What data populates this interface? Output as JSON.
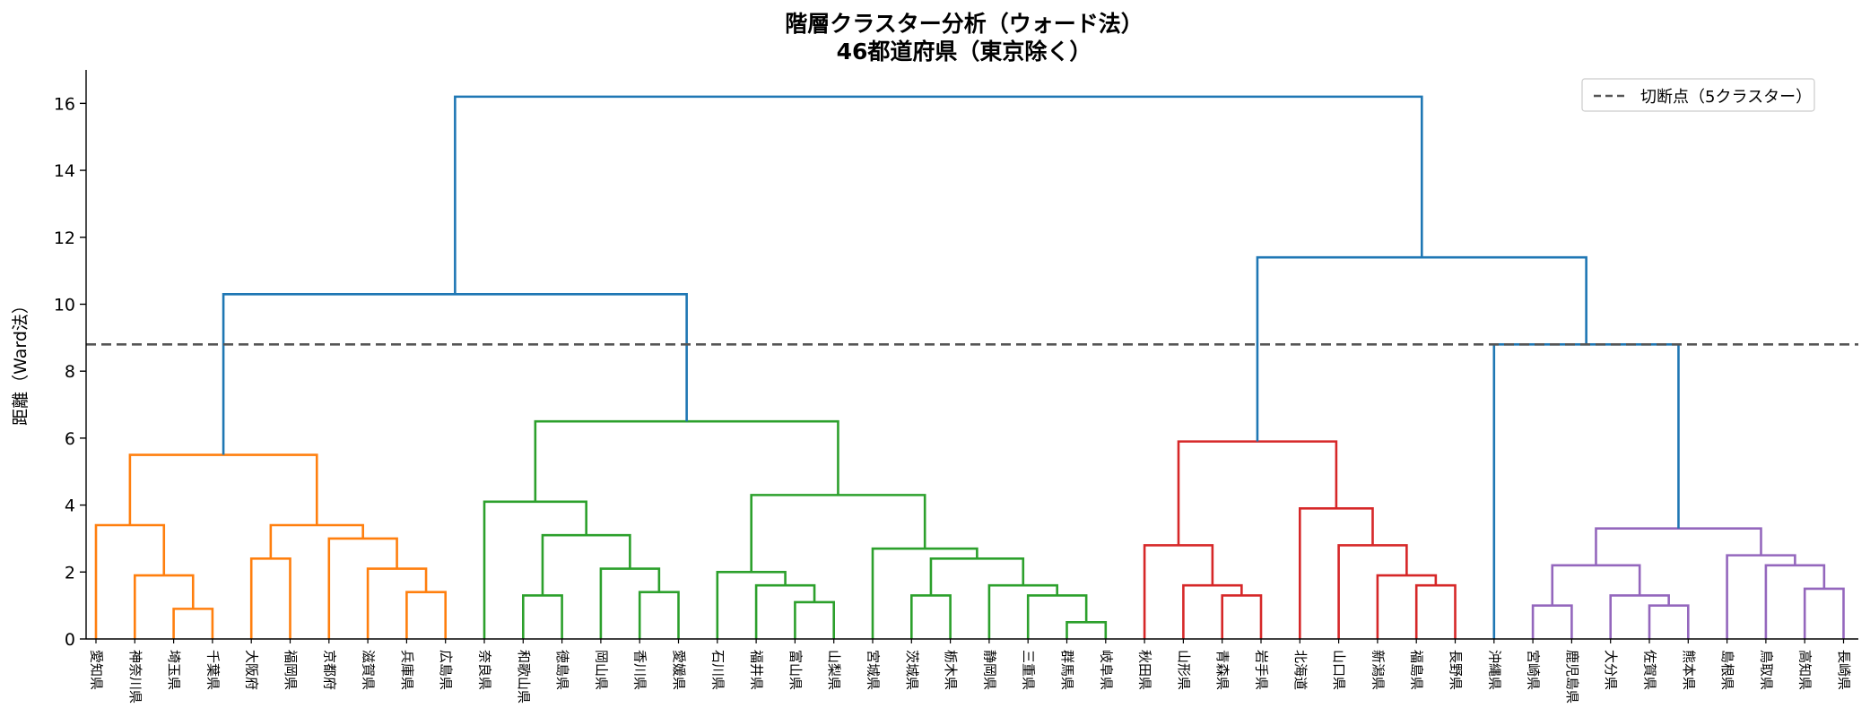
{
  "chart_data": {
    "type": "dendrogram",
    "title": "階層クラスター分析（ウォード法）",
    "subtitle": "46都道府県（東京除く）",
    "ylabel": "距離（Ward法）",
    "ylim": [
      0,
      17
    ],
    "yticks": [
      0,
      2,
      4,
      6,
      8,
      10,
      12,
      14,
      16
    ],
    "leaves": [
      "愛知県",
      "神奈川県",
      "埼玉県",
      "千葉県",
      "大阪府",
      "福岡県",
      "京都府",
      "滋賀県",
      "兵庫県",
      "広島県",
      "奈良県",
      "和歌山県",
      "徳島県",
      "岡山県",
      "香川県",
      "愛媛県",
      "石川県",
      "福井県",
      "富山県",
      "山梨県",
      "宮城県",
      "茨城県",
      "栃木県",
      "静岡県",
      "三重県",
      "群馬県",
      "岐阜県",
      "秋田県",
      "山形県",
      "青森県",
      "岩手県",
      "北海道",
      "山口県",
      "新潟県",
      "福島県",
      "長野県",
      "沖縄県",
      "宮崎県",
      "鹿児島県",
      "大分県",
      "佐賀県",
      "熊本県",
      "島根県",
      "鳥取県",
      "高知県",
      "長崎県"
    ],
    "cut_height": 8.8,
    "legend": {
      "label": "切断点（5クラスター）",
      "placement": "top-right"
    },
    "colors": {
      "above_cut": "#1f77b4",
      "cluster1": "#ff7f0e",
      "cluster2": "#2ca02c",
      "cluster3": "#d62728",
      "cluster4": "#1f77b4",
      "cluster5": "#9467bd",
      "cut_line": "#555555"
    },
    "merges": [
      {
        "left": [
          2
        ],
        "right": [
          3
        ],
        "height": 0.9,
        "color": "cluster1"
      },
      {
        "left": [
          1
        ],
        "right": [
          2,
          3
        ],
        "height": 1.9,
        "color": "cluster1"
      },
      {
        "left": [
          0
        ],
        "right": [
          1,
          2,
          3
        ],
        "height": 3.4,
        "color": "cluster1"
      },
      {
        "left": [
          4
        ],
        "right": [
          5
        ],
        "height": 2.4,
        "color": "cluster1"
      },
      {
        "left": [
          8
        ],
        "right": [
          9
        ],
        "height": 1.4,
        "color": "cluster1"
      },
      {
        "left": [
          7
        ],
        "right": [
          8,
          9
        ],
        "height": 2.1,
        "color": "cluster1"
      },
      {
        "left": [
          6
        ],
        "right": [
          7,
          8,
          9
        ],
        "height": 3.0,
        "color": "cluster1"
      },
      {
        "left": [
          4,
          5
        ],
        "right": [
          6,
          7,
          8,
          9
        ],
        "height": 3.4,
        "color": "cluster1"
      },
      {
        "left": [
          0,
          1,
          2,
          3
        ],
        "right": [
          4,
          5,
          6,
          7,
          8,
          9
        ],
        "height": 5.5,
        "color": "cluster1"
      },
      {
        "left": [
          11
        ],
        "right": [
          12
        ],
        "height": 1.3,
        "color": "cluster2"
      },
      {
        "left": [
          14
        ],
        "right": [
          15
        ],
        "height": 1.4,
        "color": "cluster2"
      },
      {
        "left": [
          13
        ],
        "right": [
          14,
          15
        ],
        "height": 2.1,
        "color": "cluster2"
      },
      {
        "left": [
          11,
          12
        ],
        "right": [
          13,
          14,
          15
        ],
        "height": 3.1,
        "color": "cluster2"
      },
      {
        "left": [
          10
        ],
        "right": [
          11,
          12,
          13,
          14,
          15
        ],
        "height": 4.1,
        "color": "cluster2"
      },
      {
        "left": [
          18
        ],
        "right": [
          19
        ],
        "height": 1.1,
        "color": "cluster2"
      },
      {
        "left": [
          17
        ],
        "right": [
          18,
          19
        ],
        "height": 1.6,
        "color": "cluster2"
      },
      {
        "left": [
          16
        ],
        "right": [
          17,
          18,
          19
        ],
        "height": 2.0,
        "color": "cluster2"
      },
      {
        "left": [
          21
        ],
        "right": [
          22
        ],
        "height": 1.3,
        "color": "cluster2"
      },
      {
        "left": [
          25
        ],
        "right": [
          26
        ],
        "height": 0.5,
        "color": "cluster2"
      },
      {
        "left": [
          24
        ],
        "right": [
          25,
          26
        ],
        "height": 1.3,
        "color": "cluster2"
      },
      {
        "left": [
          23
        ],
        "right": [
          24,
          25,
          26
        ],
        "height": 1.6,
        "color": "cluster2"
      },
      {
        "left": [
          21,
          22
        ],
        "right": [
          23,
          24,
          25,
          26
        ],
        "height": 2.4,
        "color": "cluster2"
      },
      {
        "left": [
          20
        ],
        "right": [
          21,
          22,
          23,
          24,
          25,
          26
        ],
        "height": 2.7,
        "color": "cluster2"
      },
      {
        "left": [
          16,
          17,
          18,
          19
        ],
        "right": [
          20,
          21,
          22,
          23,
          24,
          25,
          26
        ],
        "height": 4.3,
        "color": "cluster2"
      },
      {
        "left": [
          10,
          11,
          12,
          13,
          14,
          15
        ],
        "right": [
          16,
          17,
          18,
          19,
          20,
          21,
          22,
          23,
          24,
          25,
          26
        ],
        "height": 6.5,
        "color": "cluster2"
      },
      {
        "left": [
          0,
          1,
          2,
          3,
          4,
          5,
          6,
          7,
          8,
          9
        ],
        "right": [
          10,
          11,
          12,
          13,
          14,
          15,
          16,
          17,
          18,
          19,
          20,
          21,
          22,
          23,
          24,
          25,
          26
        ],
        "height": 10.3,
        "color": "above_cut"
      },
      {
        "left": [
          29
        ],
        "right": [
          30
        ],
        "height": 1.3,
        "color": "cluster3"
      },
      {
        "left": [
          28
        ],
        "right": [
          29,
          30
        ],
        "height": 1.6,
        "color": "cluster3"
      },
      {
        "left": [
          27
        ],
        "right": [
          28,
          29,
          30
        ],
        "height": 2.8,
        "color": "cluster3"
      },
      {
        "left": [
          34
        ],
        "right": [
          35
        ],
        "height": 1.6,
        "color": "cluster3"
      },
      {
        "left": [
          33
        ],
        "right": [
          34,
          35
        ],
        "height": 1.9,
        "color": "cluster3"
      },
      {
        "left": [
          32
        ],
        "right": [
          33,
          34,
          35
        ],
        "height": 2.8,
        "color": "cluster3"
      },
      {
        "left": [
          31
        ],
        "right": [
          32,
          33,
          34,
          35
        ],
        "height": 3.9,
        "color": "cluster3"
      },
      {
        "left": [
          27,
          28,
          29,
          30
        ],
        "right": [
          31,
          32,
          33,
          34,
          35
        ],
        "height": 5.9,
        "color": "cluster3"
      },
      {
        "left": [
          37
        ],
        "right": [
          38
        ],
        "height": 1.0,
        "color": "cluster5"
      },
      {
        "left": [
          40
        ],
        "right": [
          41
        ],
        "height": 1.0,
        "color": "cluster5"
      },
      {
        "left": [
          39
        ],
        "right": [
          40,
          41
        ],
        "height": 1.3,
        "color": "cluster5"
      },
      {
        "left": [
          37,
          38
        ],
        "right": [
          39,
          40,
          41
        ],
        "height": 2.2,
        "color": "cluster5"
      },
      {
        "left": [
          44
        ],
        "right": [
          45
        ],
        "height": 1.5,
        "color": "cluster5"
      },
      {
        "left": [
          43
        ],
        "right": [
          44,
          45
        ],
        "height": 2.2,
        "color": "cluster5"
      },
      {
        "left": [
          42
        ],
        "right": [
          43,
          44,
          45
        ],
        "height": 2.5,
        "color": "cluster5"
      },
      {
        "left": [
          37,
          38,
          39,
          40,
          41
        ],
        "right": [
          42,
          43,
          44,
          45
        ],
        "height": 3.3,
        "color": "cluster5"
      },
      {
        "left": [
          36
        ],
        "right": [
          37,
          38,
          39,
          40,
          41,
          42,
          43,
          44,
          45
        ],
        "height": 8.8,
        "color": "cluster4"
      },
      {
        "left": [
          27,
          28,
          29,
          30,
          31,
          32,
          33,
          34,
          35
        ],
        "right": [
          36,
          37,
          38,
          39,
          40,
          41,
          42,
          43,
          44,
          45
        ],
        "height": 11.4,
        "color": "above_cut"
      },
      {
        "left": [
          0,
          1,
          2,
          3,
          4,
          5,
          6,
          7,
          8,
          9,
          10,
          11,
          12,
          13,
          14,
          15,
          16,
          17,
          18,
          19,
          20,
          21,
          22,
          23,
          24,
          25,
          26
        ],
        "right": [
          27,
          28,
          29,
          30,
          31,
          32,
          33,
          34,
          35,
          36,
          37,
          38,
          39,
          40,
          41,
          42,
          43,
          44,
          45
        ],
        "height": 16.2,
        "color": "above_cut"
      }
    ]
  }
}
